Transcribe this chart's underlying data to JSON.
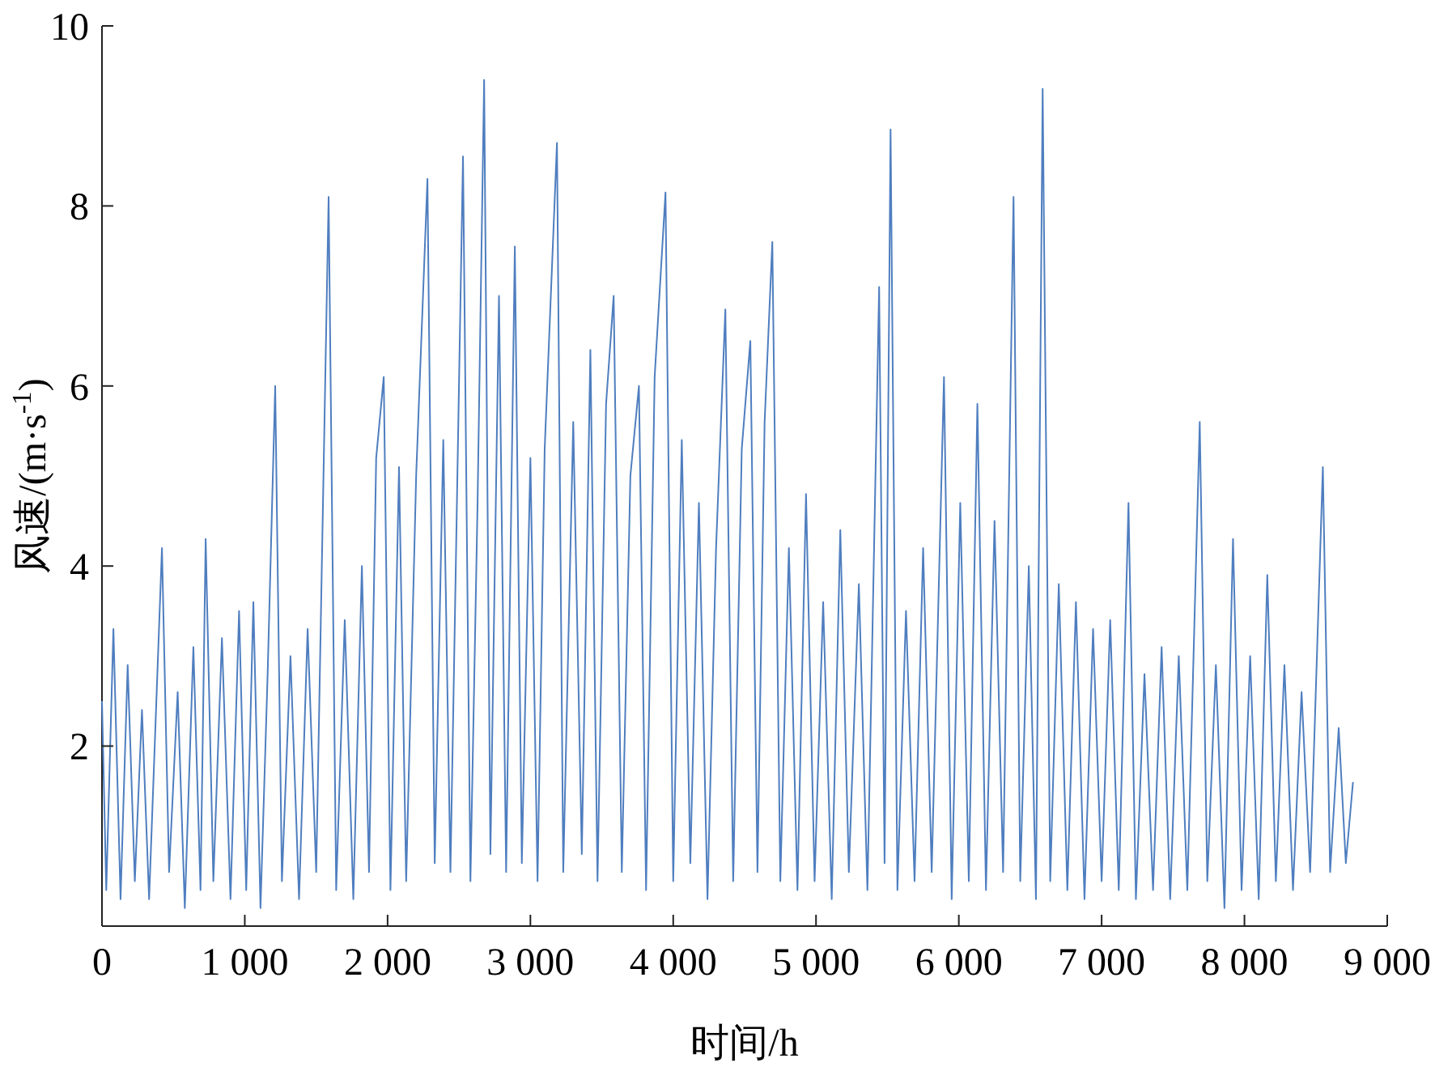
{
  "chart_data": {
    "type": "line",
    "xlabel": "时间/h",
    "ylabel": "风速/(m·s$^{-1}$)",
    "xlim": [
      0,
      9000
    ],
    "ylim": [
      0,
      10
    ],
    "xticks": [
      0,
      {
        "value": 1000,
        "label": "1 000"
      },
      {
        "value": 2000,
        "label": "2 000"
      },
      {
        "value": 3000,
        "label": "3 000"
      },
      {
        "value": 4000,
        "label": "4 000"
      },
      {
        "value": 5000,
        "label": "5 000"
      },
      {
        "value": 6000,
        "label": "6 000"
      },
      {
        "value": 7000,
        "label": "7 000"
      },
      {
        "value": 8000,
        "label": "8 000"
      },
      {
        "value": 9000,
        "label": "9 000"
      }
    ],
    "yticks": [
      2,
      4,
      6,
      8,
      10
    ],
    "grid": false,
    "marker": "none",
    "line_style": "solid",
    "series": [
      {
        "color": "#4f7ebf",
        "x": [
          0,
          30,
          80,
          130,
          180,
          230,
          280,
          330,
          420,
          470,
          530,
          580,
          640,
          690,
          726,
          780,
          840,
          900,
          960,
          1010,
          1060,
          1110,
          1160,
          1213,
          1260,
          1320,
          1380,
          1440,
          1500,
          1587,
          1640,
          1700,
          1760,
          1820,
          1870,
          1920,
          1973,
          2020,
          2080,
          2130,
          2200,
          2279,
          2330,
          2390,
          2440,
          2528,
          2580,
          2630,
          2676,
          2720,
          2780,
          2830,
          2891,
          2940,
          3000,
          3050,
          3100,
          3186,
          3230,
          3300,
          3360,
          3420,
          3470,
          3530,
          3583,
          3640,
          3700,
          3760,
          3810,
          3870,
          3946,
          4000,
          4060,
          4120,
          4180,
          4240,
          4300,
          4365,
          4420,
          4480,
          4540,
          4590,
          4640,
          4694,
          4750,
          4810,
          4870,
          4930,
          4990,
          5050,
          5110,
          5170,
          5230,
          5300,
          5360,
          5442,
          5480,
          5522,
          5570,
          5630,
          5690,
          5750,
          5810,
          5896,
          5950,
          6010,
          6070,
          6130,
          6190,
          6250,
          6310,
          6383,
          6430,
          6490,
          6540,
          6587,
          6640,
          6700,
          6760,
          6820,
          6880,
          6940,
          7000,
          7060,
          7120,
          7188,
          7240,
          7300,
          7360,
          7420,
          7480,
          7540,
          7600,
          7687,
          7740,
          7800,
          7860,
          7920,
          7980,
          8040,
          8100,
          8160,
          8220,
          8280,
          8340,
          8400,
          8460,
          8549,
          8600,
          8660,
          8710,
          8760
        ],
        "values": [
          2.5,
          0.4,
          3.3,
          0.3,
          2.9,
          0.5,
          2.4,
          0.3,
          4.2,
          0.6,
          2.6,
          0.2,
          3.1,
          0.4,
          4.3,
          0.5,
          3.2,
          0.3,
          3.5,
          0.4,
          3.6,
          0.2,
          2.8,
          6.0,
          0.5,
          3.0,
          0.3,
          3.3,
          0.6,
          8.1,
          0.4,
          3.4,
          0.3,
          4.0,
          0.6,
          5.2,
          6.1,
          0.4,
          5.1,
          0.5,
          5.0,
          8.3,
          0.7,
          5.4,
          0.6,
          8.55,
          0.5,
          4.7,
          9.4,
          0.8,
          7.0,
          0.6,
          7.55,
          0.7,
          5.2,
          0.5,
          5.3,
          8.7,
          0.6,
          5.6,
          0.8,
          6.4,
          0.5,
          5.8,
          7.0,
          0.6,
          5.0,
          6.0,
          0.4,
          6.1,
          8.15,
          0.5,
          5.4,
          0.7,
          4.7,
          0.3,
          4.2,
          6.85,
          0.5,
          5.3,
          6.5,
          0.6,
          5.6,
          7.6,
          0.5,
          4.2,
          0.4,
          4.8,
          0.5,
          3.6,
          0.3,
          4.4,
          0.6,
          3.8,
          0.4,
          7.1,
          0.7,
          8.85,
          0.4,
          3.5,
          0.5,
          4.2,
          0.6,
          6.1,
          0.3,
          4.7,
          0.5,
          5.8,
          0.4,
          4.5,
          0.6,
          8.1,
          0.5,
          4.0,
          0.3,
          9.3,
          0.5,
          3.8,
          0.4,
          3.6,
          0.3,
          3.3,
          0.5,
          3.4,
          0.4,
          4.7,
          0.3,
          2.8,
          0.4,
          3.1,
          0.3,
          3.0,
          0.4,
          5.6,
          0.5,
          2.9,
          0.2,
          4.3,
          0.4,
          3.0,
          0.3,
          3.9,
          0.5,
          2.9,
          0.4,
          2.6,
          0.6,
          5.1,
          0.6,
          2.2,
          0.7,
          1.6
        ]
      }
    ]
  }
}
